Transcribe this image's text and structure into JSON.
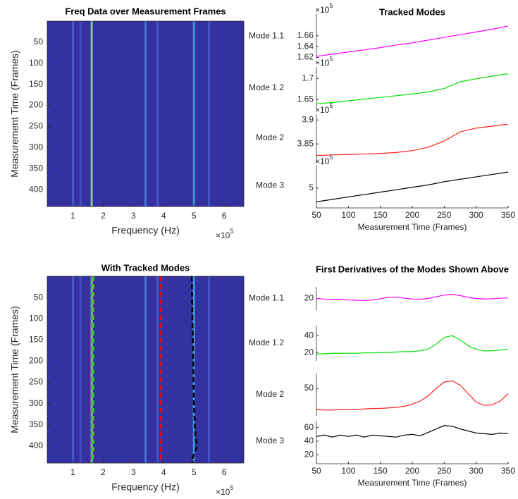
{
  "chart_data": [
    {
      "type": "heatmap",
      "title": "Freq Data over Measurement Frames",
      "xlabel": "Frequency (Hz)",
      "ylabel": "Measurement Time (Frames)",
      "xlim": [
        0.15,
        6.65
      ],
      "xticks": [
        1,
        2,
        3,
        4,
        5,
        6
      ],
      "x_exponent_base": "×10",
      "x_exponent": 5,
      "ylim": [
        0,
        440
      ],
      "yticks": [
        50,
        100,
        150,
        200,
        250,
        300,
        350,
        400
      ],
      "y_reversed": true,
      "background_color": "#3431a0",
      "ridges": {
        "x": [
          1.0,
          1.25,
          1.62,
          3.4,
          3.8,
          5.0,
          5.5
        ],
        "colors": [
          "#4a5fd0",
          "#4550c8",
          "#8fe08a",
          "#4b80e0",
          "#4460d4",
          "#3fa8e0",
          "#4458cc"
        ]
      }
    },
    {
      "type": "heatmap",
      "title": "With Tracked Modes",
      "xlabel": "Frequency (Hz)",
      "ylabel": "Measurement Time (Frames)",
      "xlim": [
        0.15,
        6.65
      ],
      "xticks": [
        1,
        2,
        3,
        4,
        5,
        6
      ],
      "x_exponent_base": "×10",
      "x_exponent": 5,
      "ylim": [
        0,
        440
      ],
      "yticks": [
        50,
        100,
        150,
        200,
        250,
        300,
        350,
        400
      ],
      "y_reversed": true,
      "background_color": "#3431a0",
      "ridges": {
        "x": [
          1.0,
          1.25,
          1.62,
          3.4,
          3.8,
          5.0,
          5.5
        ],
        "colors": [
          "#4a5fd0",
          "#4550c8",
          "#8fe08a",
          "#4b80e0",
          "#4460d4",
          "#3fa8e0",
          "#4458cc"
        ]
      },
      "tracks": [
        {
          "color": "#ff00ff",
          "x": [
            1.64,
            1.64,
            1.6
          ],
          "y": [
            0,
            420,
            440
          ]
        },
        {
          "color": "#00ff00",
          "x": [
            1.67,
            1.67,
            1.63
          ],
          "y": [
            0,
            420,
            440
          ]
        },
        {
          "color": "#ff0000",
          "x": [
            3.9,
            3.9
          ],
          "y": [
            0,
            440
          ]
        },
        {
          "color": "#000000",
          "x": [
            4.93,
            4.95,
            4.98,
            5.0,
            5.05,
            5.1,
            4.95,
            4.95
          ],
          "y": [
            0,
            100,
            200,
            300,
            380,
            400,
            430,
            440
          ]
        }
      ]
    },
    {
      "type": "stacked-line",
      "title": "Tracked Modes",
      "xlabel": "Measurement Time (Frames)",
      "x": [
        50,
        75,
        100,
        125,
        150,
        175,
        200,
        225,
        250,
        275,
        300,
        325,
        350
      ],
      "xlim": [
        50,
        350
      ],
      "xticks": [
        50,
        100,
        150,
        200,
        250,
        300,
        350
      ],
      "exponent_base": "×10",
      "series": [
        {
          "name": "Mode 1.1",
          "color": "#ff00ff",
          "exponent": 5,
          "ylim": [
            1.618,
            1.7
          ],
          "yticks": [
            1.62,
            1.64,
            1.66
          ],
          "values": [
            1.622,
            1.626,
            1.63,
            1.634,
            1.638,
            1.643,
            1.647,
            1.652,
            1.657,
            1.662,
            1.667,
            1.672,
            1.678
          ]
        },
        {
          "name": "Mode 1.2",
          "color": "#00e000",
          "exponent": 5,
          "ylim": [
            1.627,
            1.727
          ],
          "yticks": [
            1.65,
            1.7
          ],
          "values": [
            1.64,
            1.643,
            1.647,
            1.651,
            1.655,
            1.659,
            1.663,
            1.668,
            1.676,
            1.692,
            1.699,
            1.705,
            1.711
          ]
        },
        {
          "name": "Mode 2",
          "color": "#ff2020",
          "exponent": 5,
          "ylim": [
            3.812,
            3.912
          ],
          "yticks": [
            3.85,
            3.9
          ],
          "values": [
            3.826,
            3.827,
            3.828,
            3.829,
            3.83,
            3.832,
            3.836,
            3.843,
            3.856,
            3.875,
            3.883,
            3.887,
            3.891
          ]
        },
        {
          "name": "Mode 3",
          "color": "#000000",
          "exponent": 5,
          "ylim": [
            4.78,
            5.28
          ],
          "yticks": [
            5
          ],
          "values": [
            4.83,
            4.86,
            4.89,
            4.92,
            4.95,
            4.98,
            5.01,
            5.04,
            5.08,
            5.11,
            5.14,
            5.17,
            5.2
          ]
        }
      ]
    },
    {
      "type": "stacked-line",
      "title": "First Derivatives of the Modes Shown Above",
      "xlabel": "Measurement Time (Frames)",
      "x": [
        50,
        62.5,
        75,
        87.5,
        100,
        112.5,
        125,
        137.5,
        150,
        162.5,
        175,
        187.5,
        200,
        212.5,
        225,
        237.5,
        250,
        262.5,
        275,
        287.5,
        300,
        312.5,
        325,
        337.5,
        350
      ],
      "xlim": [
        50,
        350
      ],
      "xticks": [
        50,
        100,
        150,
        200,
        250,
        300,
        350
      ],
      "series": [
        {
          "name": "Mode 1.1",
          "color": "#ff00ff",
          "ylim": [
            12,
            28
          ],
          "yticks": [
            20
          ],
          "values": [
            20,
            19.6,
            19.4,
            19.5,
            19,
            18.8,
            18.6,
            19,
            19.8,
            20.8,
            21,
            20.2,
            19.6,
            19.5,
            20,
            21.2,
            22.4,
            22.8,
            22,
            20.8,
            20,
            19.7,
            19.8,
            20.2,
            20.4
          ]
        },
        {
          "name": "Mode 1.2",
          "color": "#00e000",
          "ylim": [
            10,
            52
          ],
          "yticks": [
            20,
            40
          ],
          "values": [
            18,
            18.5,
            19,
            19,
            19.2,
            19,
            19.5,
            19.5,
            20,
            20,
            20.5,
            21,
            21,
            22,
            24,
            30,
            38,
            40,
            35,
            28,
            24,
            22,
            22,
            23,
            24
          ]
        },
        {
          "name": "Mode 2",
          "color": "#ff2020",
          "ylim": [
            24,
            64
          ],
          "yticks": [
            50
          ],
          "values": [
            30,
            29.5,
            29.5,
            30,
            30,
            30,
            30.5,
            31,
            31,
            31.5,
            32,
            33,
            35,
            38,
            43,
            50,
            56,
            57,
            53,
            45,
            37,
            34,
            34.5,
            38,
            45
          ]
        },
        {
          "name": "Mode 3",
          "color": "#000000",
          "ylim": [
            10,
            70
          ],
          "yticks": [
            20,
            40,
            60
          ],
          "values": [
            47,
            49,
            46,
            49,
            47,
            49,
            46,
            49,
            48,
            47,
            46,
            49,
            50,
            48,
            53,
            58,
            63,
            62,
            58,
            55,
            52,
            51,
            50,
            52,
            51
          ]
        }
      ]
    }
  ]
}
